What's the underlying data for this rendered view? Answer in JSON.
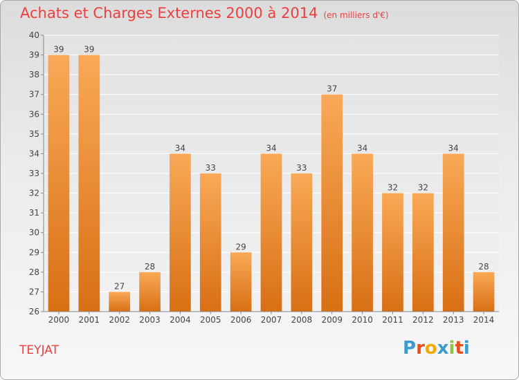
{
  "header": {
    "title": "Achats et Charges Externes 2000 à 2014",
    "subtitle": "(en milliers d'€)"
  },
  "footer": {
    "place": "TEYJAT",
    "logo_letters": [
      "P",
      "r",
      "o",
      "x",
      "i",
      "t",
      "i"
    ],
    "logo_colors": [
      "#3d9ad1",
      "#e84e1b",
      "#f2a900",
      "#3d9ad1",
      "#8dc63f",
      "#e84e1b",
      "#3d9ad1"
    ]
  },
  "chart_data": {
    "type": "bar",
    "categories": [
      "2000",
      "2001",
      "2002",
      "2003",
      "2004",
      "2005",
      "2006",
      "2007",
      "2008",
      "2009",
      "2010",
      "2011",
      "2012",
      "2013",
      "2014"
    ],
    "values": [
      39,
      39,
      27,
      28,
      34,
      33,
      29,
      34,
      33,
      37,
      34,
      32,
      32,
      34,
      28
    ],
    "ylim": [
      26,
      40
    ],
    "yticks": [
      "26",
      "27",
      "28",
      "29",
      "30",
      "31",
      "32",
      "33",
      "34",
      "35",
      "36",
      "37",
      "38",
      "39",
      "40"
    ],
    "grid": true,
    "bar_color_top": "#f9a957",
    "bar_color_bottom": "#d86f14"
  }
}
